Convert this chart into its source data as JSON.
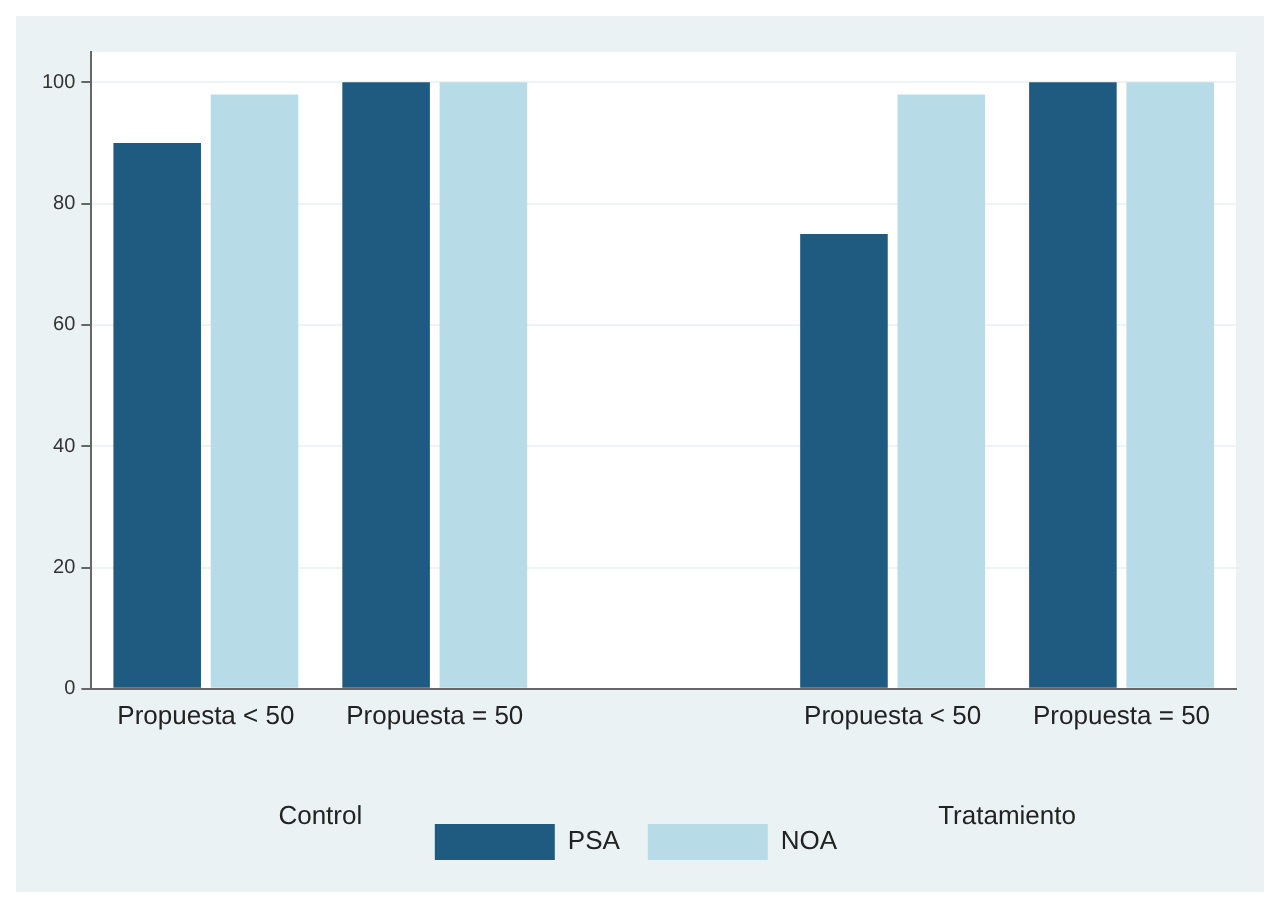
{
  "chart_data": {
    "type": "bar",
    "categories": [
      "Propuesta < 50",
      "Propuesta = 50",
      null,
      "Propuesta < 50",
      "Propuesta = 50"
    ],
    "series": [
      {
        "name": "PSA",
        "color": "#1f5a80",
        "values": [
          90,
          100,
          null,
          75,
          100
        ]
      },
      {
        "name": "NOA",
        "color": "#b7dce8",
        "values": [
          98,
          100,
          null,
          98,
          100
        ]
      }
    ],
    "annotations": [
      "Control",
      "Tratamiento"
    ],
    "ylim": [
      0,
      105
    ],
    "yticks": [
      0,
      20,
      40,
      60,
      80,
      100
    ],
    "grid": "y",
    "legend": "bottom"
  }
}
